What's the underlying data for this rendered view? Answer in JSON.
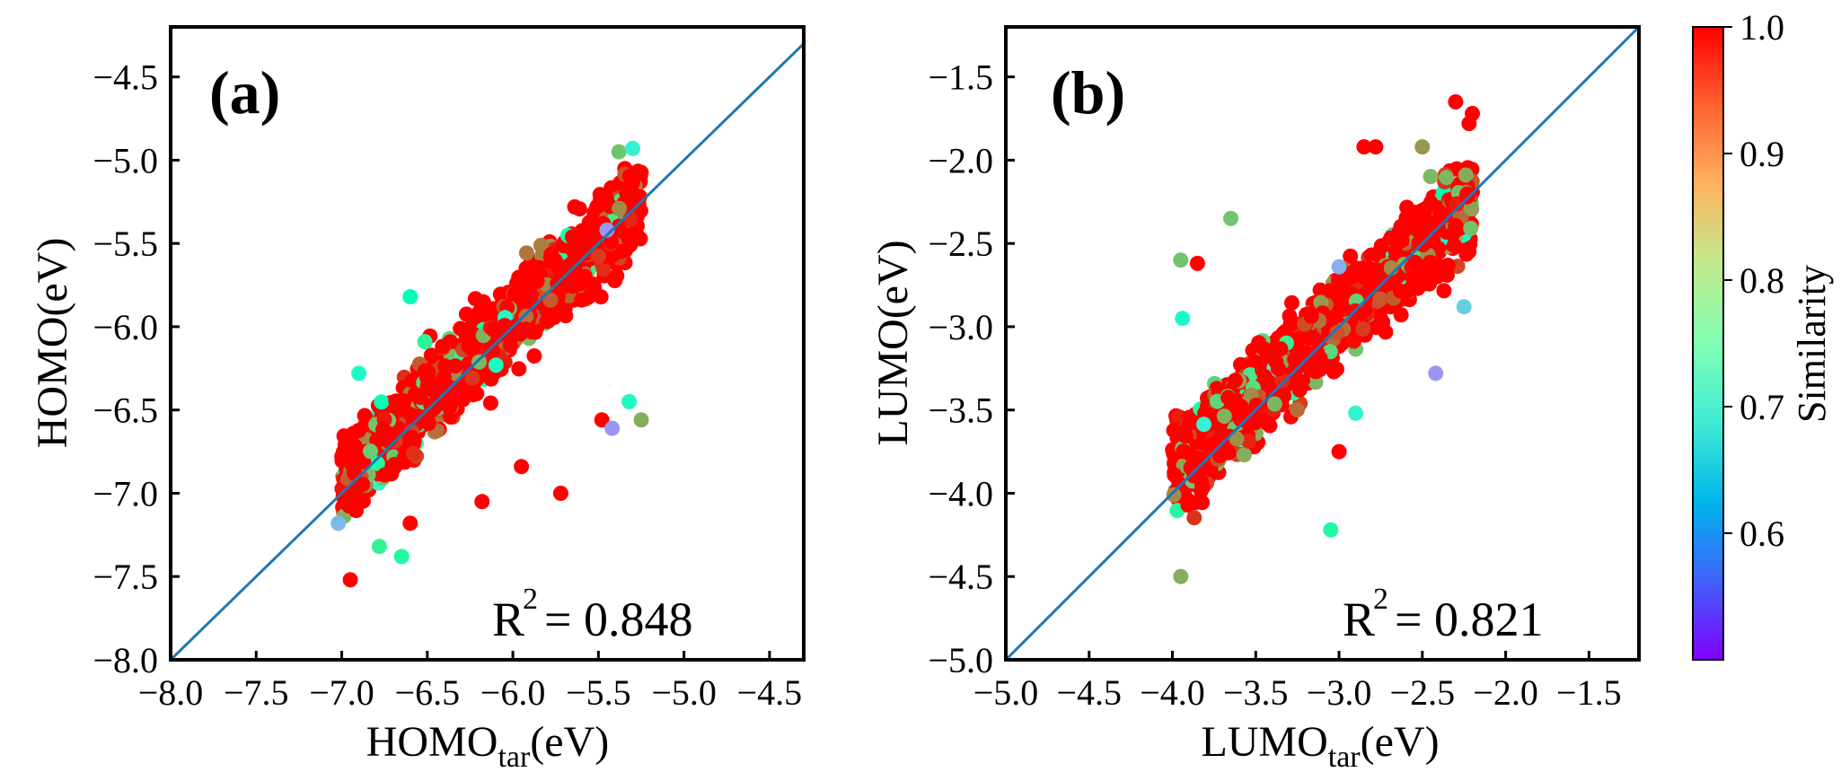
{
  "chart_data": [
    {
      "type": "scatter",
      "panel_label": "(a)",
      "xlabel": "HOMO",
      "xlabel_sub": "tar",
      "xlabel_unit": "(eV)",
      "ylabel": "HOMO(eV)",
      "xlim": [
        -8.0,
        -4.3
      ],
      "ylim": [
        -8.0,
        -4.2
      ],
      "xticks": [
        "−8.0",
        "−7.5",
        "−7.0",
        "−6.5",
        "−6.0",
        "−5.5",
        "−5.0",
        "−4.5"
      ],
      "xtick_values": [
        -8.0,
        -7.5,
        -7.0,
        -6.5,
        -6.0,
        -5.5,
        -5.0,
        -4.5
      ],
      "yticks": [
        "−4.5",
        "−5.0",
        "−5.5",
        "−6.0",
        "−6.5",
        "−7.0",
        "−7.5",
        "−8.0"
      ],
      "ytick_values": [
        -4.5,
        -5.0,
        -5.5,
        -6.0,
        -6.5,
        -7.0,
        -7.5,
        -8.0
      ],
      "r2_label": "R",
      "r2_sup": "2",
      "r2_value": "= 0.848",
      "diagonal": true,
      "cluster": {
        "x_range": [
          -7.0,
          -5.25
        ],
        "slope": 0.95,
        "center": [
          -6.1,
          -6.05
        ],
        "spread": 0.28
      },
      "points": [
        {
          "x": -6.95,
          "y": -7.52,
          "s": 1.0
        },
        {
          "x": -7.02,
          "y": -7.18,
          "s": 0.63
        },
        {
          "x": -6.65,
          "y": -7.38,
          "s": 0.78
        },
        {
          "x": -6.78,
          "y": -7.32,
          "s": 0.8
        },
        {
          "x": -6.18,
          "y": -7.05,
          "s": 1.0
        },
        {
          "x": -5.72,
          "y": -7.0,
          "s": 1.0
        },
        {
          "x": -5.48,
          "y": -6.56,
          "s": 1.0
        },
        {
          "x": -5.42,
          "y": -6.61,
          "s": 0.6
        },
        {
          "x": -5.25,
          "y": -6.56,
          "s": 0.88
        },
        {
          "x": -5.32,
          "y": -6.45,
          "s": 0.72
        },
        {
          "x": -5.45,
          "y": -5.42,
          "s": 0.6
        },
        {
          "x": -6.6,
          "y": -5.82,
          "s": 0.75
        },
        {
          "x": -6.9,
          "y": -6.28,
          "s": 0.72
        },
        {
          "x": -5.38,
          "y": -4.95,
          "s": 0.86
        },
        {
          "x": -5.3,
          "y": -4.93,
          "s": 0.7
        },
        {
          "x": -6.6,
          "y": -7.18,
          "s": 1.0
        },
        {
          "x": -5.95,
          "y": -6.84,
          "s": 1.0
        }
      ]
    },
    {
      "type": "scatter",
      "panel_label": "(b)",
      "xlabel": "LUMO",
      "xlabel_sub": "tar",
      "xlabel_unit": "(eV)",
      "ylabel": "LUMO(eV)",
      "xlim": [
        -5.0,
        -1.2
      ],
      "ylim": [
        -5.0,
        -1.2
      ],
      "xticks": [
        "−5.0",
        "−4.5",
        "−4.0",
        "−3.5",
        "−3.0",
        "−2.5",
        "−2.0",
        "−1.5"
      ],
      "xtick_values": [
        -5.0,
        -4.5,
        -4.0,
        -3.5,
        -3.0,
        -2.5,
        -2.0,
        -1.5
      ],
      "yticks": [
        "−1.5",
        "−2.0",
        "−2.5",
        "−3.0",
        "−3.5",
        "−4.0",
        "−4.5",
        "−5.0"
      ],
      "ytick_values": [
        -1.5,
        -2.0,
        -2.5,
        -3.0,
        -3.5,
        -4.0,
        -4.5,
        -5.0
      ],
      "r2_label": "R",
      "r2_sup": "2",
      "r2_value": "= 0.821",
      "diagonal": true,
      "cluster": {
        "x_range": [
          -4.0,
          -2.2
        ],
        "slope": 0.9,
        "center": [
          -3.1,
          -3.05
        ],
        "spread": 0.3
      },
      "points": [
        {
          "x": -3.95,
          "y": -4.5,
          "s": 0.88
        },
        {
          "x": -3.05,
          "y": -4.22,
          "s": 0.78
        },
        {
          "x": -2.3,
          "y": -1.65,
          "s": 1.0
        },
        {
          "x": -2.2,
          "y": -1.72,
          "s": 1.0
        },
        {
          "x": -2.22,
          "y": -1.78,
          "s": 1.0
        },
        {
          "x": -2.85,
          "y": -1.92,
          "s": 1.0
        },
        {
          "x": -2.78,
          "y": -1.92,
          "s": 1.0
        },
        {
          "x": -3.65,
          "y": -2.35,
          "s": 0.86
        },
        {
          "x": -3.95,
          "y": -2.6,
          "s": 0.86
        },
        {
          "x": -3.85,
          "y": -2.62,
          "s": 1.0
        },
        {
          "x": -3.94,
          "y": -2.95,
          "s": 0.72
        },
        {
          "x": -3.0,
          "y": -2.64,
          "s": 0.62
        },
        {
          "x": -2.42,
          "y": -3.28,
          "s": 0.6
        },
        {
          "x": -2.25,
          "y": -2.88,
          "s": 0.65
        },
        {
          "x": -2.9,
          "y": -3.52,
          "s": 0.7
        },
        {
          "x": -3.0,
          "y": -3.75,
          "s": 1.0
        },
        {
          "x": -2.5,
          "y": -1.92,
          "s": 0.9
        }
      ]
    }
  ],
  "colorbar": {
    "label": "Similarity",
    "vmin": 0.5,
    "vmax": 1.0,
    "ticks": [
      "0.6",
      "0.7",
      "0.8",
      "0.9",
      "1.0"
    ],
    "tick_values": [
      0.6,
      0.7,
      0.8,
      0.9,
      1.0
    ],
    "colormap": "rainbow"
  },
  "colors": {
    "diagonal": "#1f77b4",
    "axes": "#000000"
  }
}
